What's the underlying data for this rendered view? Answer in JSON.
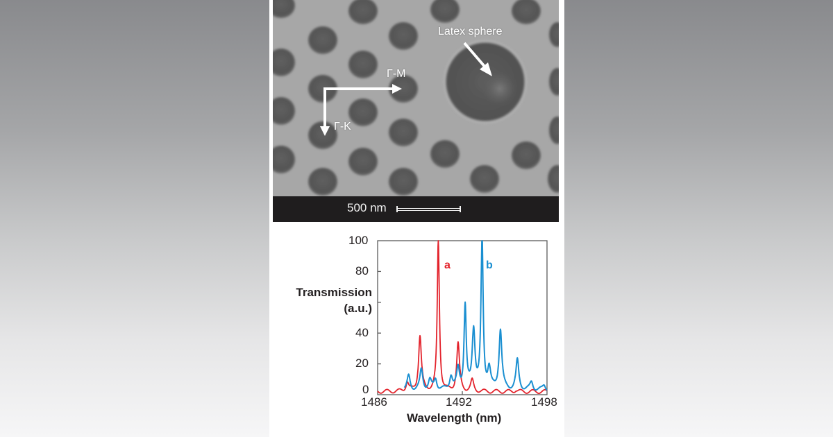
{
  "figure": {
    "sem_image": {
      "annotations": {
        "latex_sphere": "Latex sphere",
        "gamma_m": "Γ-M",
        "gamma_k": "Γ-K"
      },
      "scale_bar": {
        "label": "500 nm"
      }
    },
    "chart": {
      "ylabel_line1": "Transmission",
      "ylabel_line2": "(a.u.)",
      "xlabel": "Wavelength (nm)",
      "yticks": [
        "100",
        "80",
        "40",
        "20",
        "0"
      ],
      "xticks": [
        "1486",
        "1492",
        "1498"
      ],
      "series_labels": {
        "a": "a",
        "b": "b"
      }
    }
  },
  "colors": {
    "series_a": "#e3222b",
    "series_b": "#1a8fd1",
    "axis": "#5a5a5a",
    "text": "#231f20",
    "side_background_top": "#898a8d",
    "side_background_bottom": "#f6f6f7"
  },
  "chart_data": {
    "type": "line",
    "title": "",
    "xlabel": "Wavelength (nm)",
    "ylabel": "Transmission (a.u.)",
    "xlim": [
      1486,
      1498
    ],
    "ylim": [
      0,
      100
    ],
    "xticks": [
      1486,
      1492,
      1498
    ],
    "xtick_labels": [
      "1486",
      "1492",
      "1498"
    ],
    "yticks": [
      0,
      20,
      40,
      60,
      80,
      100
    ],
    "ytick_labels": [
      "0",
      "20",
      "40",
      "",
      "80",
      "100"
    ],
    "grid": false,
    "legend": "inline labels 'a' (red) and 'b' (blue) near their main peaks",
    "series": [
      {
        "name": "a",
        "color": "#e3222b",
        "peaks": [
          {
            "x": 1488.1,
            "y": 8
          },
          {
            "x": 1489.0,
            "y": 38
          },
          {
            "x": 1490.3,
            "y": 100
          },
          {
            "x": 1491.7,
            "y": 33
          },
          {
            "x": 1492.7,
            "y": 9
          },
          {
            "x": 1495.8,
            "y": 3
          }
        ],
        "baseline": 2,
        "x_range": [
          1486,
          1498
        ]
      },
      {
        "name": "b",
        "color": "#1a8fd1",
        "peaks": [
          {
            "x": 1488.2,
            "y": 12
          },
          {
            "x": 1489.1,
            "y": 16
          },
          {
            "x": 1489.7,
            "y": 9
          },
          {
            "x": 1490.1,
            "y": 10
          },
          {
            "x": 1491.2,
            "y": 12
          },
          {
            "x": 1491.7,
            "y": 16
          },
          {
            "x": 1492.2,
            "y": 57
          },
          {
            "x": 1492.8,
            "y": 42
          },
          {
            "x": 1493.4,
            "y": 100
          },
          {
            "x": 1493.9,
            "y": 16
          },
          {
            "x": 1494.7,
            "y": 42
          },
          {
            "x": 1495.9,
            "y": 22
          },
          {
            "x": 1496.9,
            "y": 8
          },
          {
            "x": 1497.8,
            "y": 6
          }
        ],
        "baseline": 3,
        "x_range": [
          1487.9,
          1498
        ]
      }
    ]
  }
}
